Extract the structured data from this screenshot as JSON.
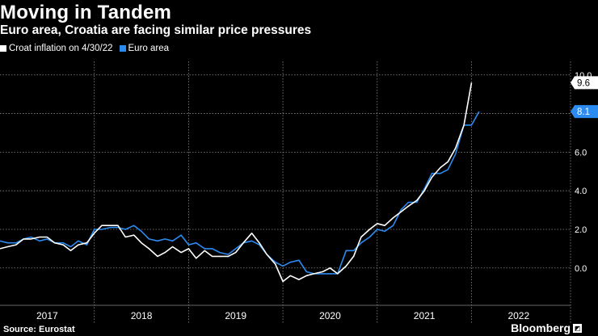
{
  "header": {
    "title": "Moving in Tandem",
    "subtitle": "Euro area, Croatia are facing similar price pressures"
  },
  "footer": {
    "source": "Source: Eurostat",
    "brand": "Bloomberg"
  },
  "chart_data": {
    "type": "line",
    "title": "Moving in Tandem",
    "subtitle": "Euro area, Croatia are facing similar price pressures",
    "xlabel": "",
    "ylabel": "",
    "ylim": [
      -1.6,
      10.2
    ],
    "yticks": [
      0,
      2,
      4,
      6,
      8,
      10
    ],
    "ytick_labels": [
      "0.0",
      "2.0",
      "4.0",
      "6.0",
      "8.0",
      "10.0"
    ],
    "xlim": [
      2016.5,
      2022.55
    ],
    "year_labels": [
      "2017",
      "2018",
      "2019",
      "2020",
      "2021",
      "2022"
    ],
    "grid": true,
    "legend_position": "top-left",
    "series": [
      {
        "name": "Croat inflation on 4/30/22",
        "color": "#ffffff",
        "end_label": "9.6",
        "points": [
          [
            2016.5,
            1.0
          ],
          [
            2016.58,
            1.1
          ],
          [
            2016.67,
            1.2
          ],
          [
            2016.75,
            1.5
          ],
          [
            2016.83,
            1.5
          ],
          [
            2016.92,
            1.6
          ],
          [
            2017.0,
            1.6
          ],
          [
            2017.08,
            1.3
          ],
          [
            2017.17,
            1.2
          ],
          [
            2017.25,
            0.9
          ],
          [
            2017.33,
            1.2
          ],
          [
            2017.42,
            1.3
          ],
          [
            2017.5,
            1.8
          ],
          [
            2017.58,
            2.2
          ],
          [
            2017.67,
            2.2
          ],
          [
            2017.75,
            2.2
          ],
          [
            2017.83,
            1.6
          ],
          [
            2017.92,
            1.7
          ],
          [
            2018.0,
            1.3
          ],
          [
            2018.08,
            1.0
          ],
          [
            2018.17,
            0.6
          ],
          [
            2018.25,
            0.8
          ],
          [
            2018.33,
            1.1
          ],
          [
            2018.42,
            0.8
          ],
          [
            2018.5,
            1.0
          ],
          [
            2018.58,
            0.5
          ],
          [
            2018.67,
            0.9
          ],
          [
            2018.75,
            0.6
          ],
          [
            2018.83,
            0.6
          ],
          [
            2018.92,
            0.6
          ],
          [
            2019.0,
            0.8
          ],
          [
            2019.08,
            1.3
          ],
          [
            2019.17,
            1.8
          ],
          [
            2019.25,
            1.3
          ],
          [
            2019.33,
            0.7
          ],
          [
            2019.42,
            0.2
          ],
          [
            2019.5,
            -0.7
          ],
          [
            2019.58,
            -0.4
          ],
          [
            2019.67,
            -0.6
          ],
          [
            2019.75,
            -0.4
          ],
          [
            2019.83,
            -0.3
          ],
          [
            2019.92,
            -0.2
          ],
          [
            2020.0,
            0.0
          ],
          [
            2020.08,
            -0.3
          ],
          [
            2020.17,
            0.1
          ],
          [
            2020.25,
            0.6
          ],
          [
            2020.33,
            1.6
          ],
          [
            2020.42,
            2.0
          ],
          [
            2020.5,
            2.3
          ],
          [
            2020.58,
            2.2
          ],
          [
            2020.67,
            2.6
          ],
          [
            2020.75,
            2.9
          ],
          [
            2020.83,
            3.2
          ],
          [
            2020.92,
            3.5
          ],
          [
            2021.0,
            4.0
          ],
          [
            2021.08,
            4.7
          ],
          [
            2021.17,
            5.2
          ],
          [
            2021.25,
            5.5
          ],
          [
            2021.33,
            6.2
          ],
          [
            2021.42,
            7.4
          ],
          [
            2021.5,
            9.6
          ]
        ]
      },
      {
        "name": "Euro area",
        "color": "#2b8bf0",
        "end_label": "8.1",
        "points": [
          [
            2016.5,
            1.4
          ],
          [
            2016.58,
            1.3
          ],
          [
            2016.67,
            1.3
          ],
          [
            2016.75,
            1.5
          ],
          [
            2016.83,
            1.6
          ],
          [
            2016.92,
            1.4
          ],
          [
            2017.0,
            1.5
          ],
          [
            2017.08,
            1.3
          ],
          [
            2017.17,
            1.3
          ],
          [
            2017.25,
            1.1
          ],
          [
            2017.33,
            1.4
          ],
          [
            2017.42,
            1.2
          ],
          [
            2017.5,
            2.0
          ],
          [
            2017.58,
            2.0
          ],
          [
            2017.67,
            2.1
          ],
          [
            2017.75,
            2.1
          ],
          [
            2017.83,
            2.0
          ],
          [
            2017.92,
            2.2
          ],
          [
            2018.0,
            1.9
          ],
          [
            2018.08,
            1.5
          ],
          [
            2018.17,
            1.4
          ],
          [
            2018.25,
            1.5
          ],
          [
            2018.33,
            1.4
          ],
          [
            2018.42,
            1.7
          ],
          [
            2018.5,
            1.2
          ],
          [
            2018.58,
            1.3
          ],
          [
            2018.67,
            1.0
          ],
          [
            2018.75,
            1.0
          ],
          [
            2018.83,
            0.8
          ],
          [
            2018.92,
            0.7
          ],
          [
            2019.0,
            1.0
          ],
          [
            2019.08,
            1.3
          ],
          [
            2019.17,
            1.4
          ],
          [
            2019.25,
            1.2
          ],
          [
            2019.33,
            0.7
          ],
          [
            2019.42,
            0.3
          ],
          [
            2019.5,
            0.1
          ],
          [
            2019.58,
            0.3
          ],
          [
            2019.67,
            0.4
          ],
          [
            2019.75,
            -0.2
          ],
          [
            2019.83,
            -0.3
          ],
          [
            2019.92,
            -0.3
          ],
          [
            2020.0,
            -0.3
          ],
          [
            2020.08,
            -0.3
          ],
          [
            2020.17,
            0.9
          ],
          [
            2020.25,
            0.9
          ],
          [
            2020.33,
            1.3
          ],
          [
            2020.42,
            1.6
          ],
          [
            2020.5,
            2.0
          ],
          [
            2020.58,
            1.9
          ],
          [
            2020.67,
            2.2
          ],
          [
            2020.75,
            3.0
          ],
          [
            2020.83,
            3.4
          ],
          [
            2020.92,
            3.4
          ],
          [
            2021.0,
            4.1
          ],
          [
            2021.08,
            4.9
          ],
          [
            2021.17,
            4.9
          ],
          [
            2021.25,
            5.1
          ],
          [
            2021.33,
            5.9
          ],
          [
            2021.42,
            7.4
          ],
          [
            2021.5,
            7.4
          ],
          [
            2021.58,
            8.1
          ]
        ]
      }
    ]
  }
}
